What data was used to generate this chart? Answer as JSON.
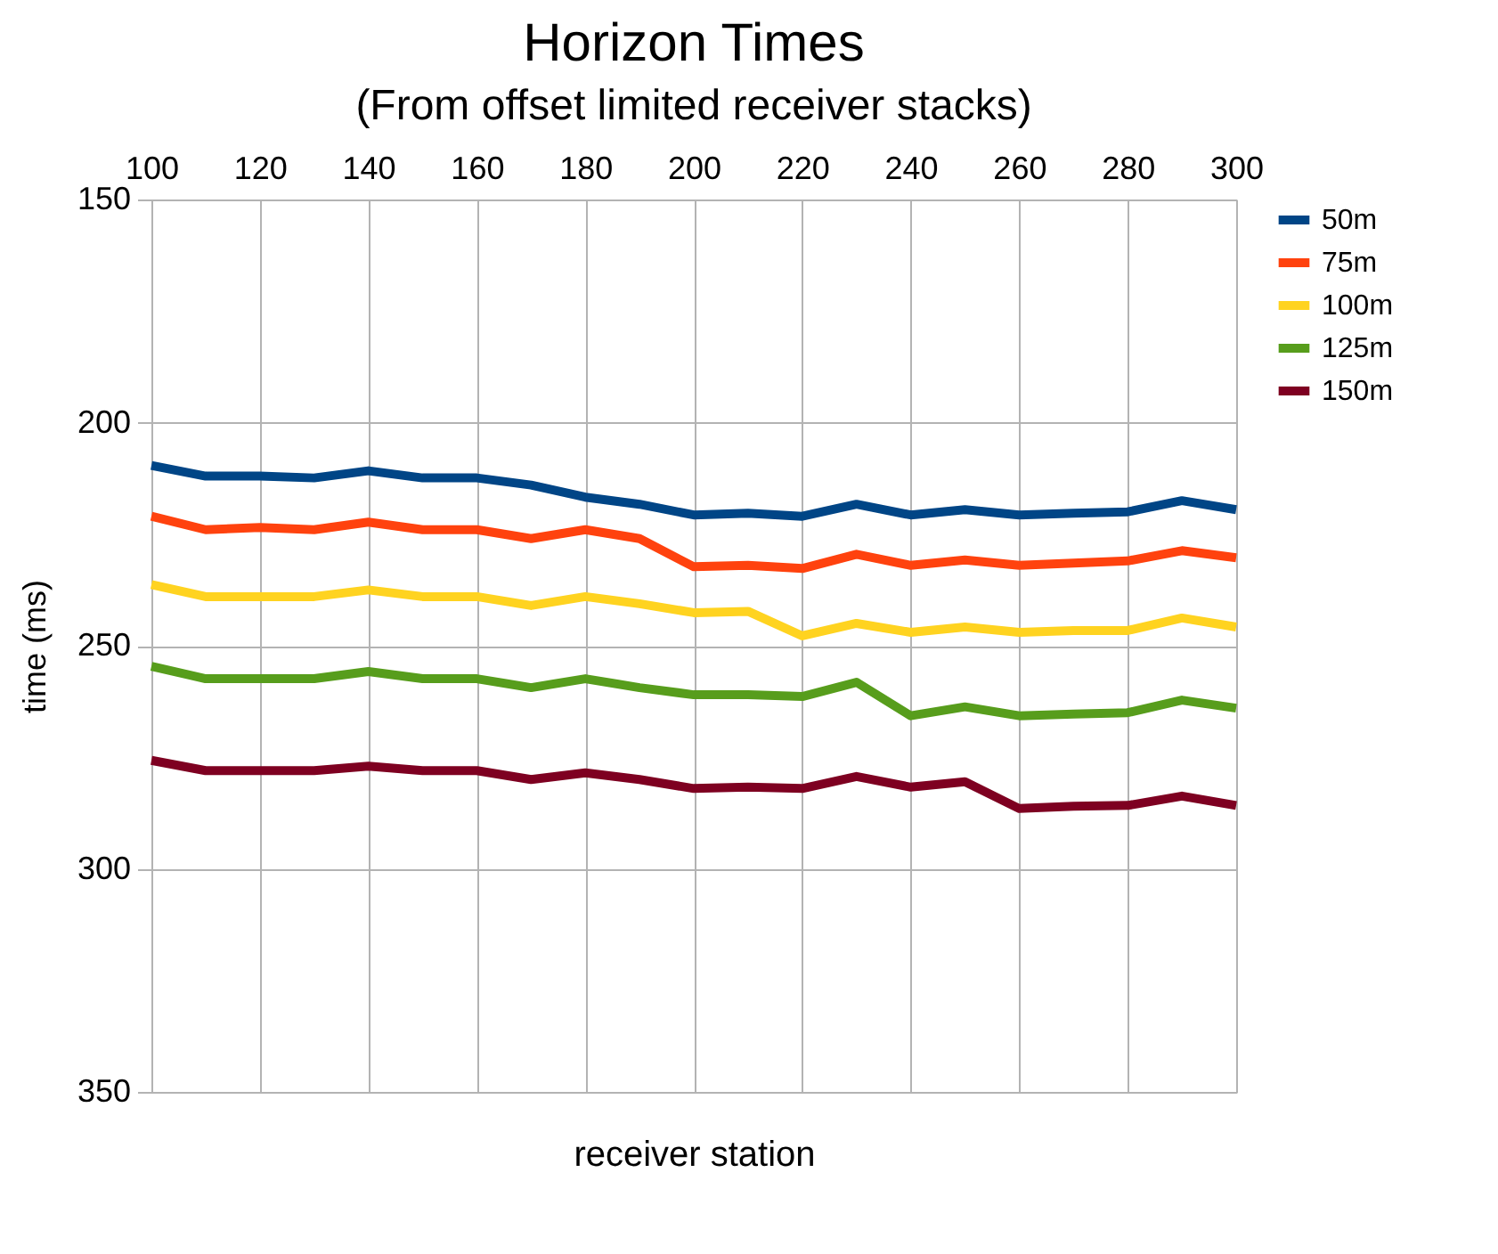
{
  "chart_data": {
    "type": "line",
    "title": "Horizon Times",
    "subtitle": "(From offset limited receiver stacks)",
    "xlabel": "receiver station",
    "ylabel": "time (ms)",
    "x": [
      100,
      110,
      120,
      130,
      140,
      150,
      160,
      170,
      180,
      190,
      200,
      210,
      220,
      230,
      240,
      250,
      260,
      270,
      280,
      290,
      300
    ],
    "series": [
      {
        "name": "50m",
        "color": "#004586",
        "values": [
          209.6,
          212,
          212,
          212.4,
          210.8,
          212.4,
          212.4,
          214,
          216.7,
          218.3,
          220.7,
          220.3,
          221,
          218.3,
          220.7,
          219.5,
          220.7,
          220.3,
          220,
          217.5,
          219.5
        ]
      },
      {
        "name": "75m",
        "color": "#ff420e",
        "values": [
          221,
          224,
          223.5,
          224,
          222.3,
          224,
          224,
          226,
          224,
          226,
          232.3,
          232,
          232.7,
          229.5,
          232,
          230.8,
          232,
          231.5,
          231,
          228.7,
          230.3
        ]
      },
      {
        "name": "100m",
        "color": "#ffd320",
        "values": [
          236.3,
          239,
          239,
          239,
          237.5,
          239,
          239,
          241,
          239,
          240.6,
          242.6,
          242.3,
          247.8,
          245,
          247,
          245.8,
          247,
          246.6,
          246.6,
          243.8,
          245.8
        ]
      },
      {
        "name": "125m",
        "color": "#579d1c",
        "values": [
          254.6,
          257.4,
          257.4,
          257.4,
          255.8,
          257.4,
          257.4,
          259.4,
          257.4,
          259.4,
          261,
          261,
          261.4,
          258.2,
          265.7,
          263.7,
          265.7,
          265.3,
          265,
          262.2,
          264
        ]
      },
      {
        "name": "150m",
        "color": "#7e0021",
        "values": [
          275.7,
          278,
          278,
          278,
          277,
          278,
          278,
          280,
          278.5,
          280,
          282,
          281.7,
          282,
          279.3,
          281.7,
          280.5,
          286.5,
          286,
          285.8,
          283.7,
          285.8
        ]
      }
    ],
    "xlim": [
      100,
      300
    ],
    "xticks": [
      100,
      120,
      140,
      160,
      180,
      200,
      220,
      240,
      260,
      280,
      300
    ],
    "ylim": [
      350,
      150
    ],
    "yticks": [
      150,
      200,
      250,
      300,
      350
    ],
    "grid": true,
    "legend": "right",
    "marker": "none",
    "line_style": "solid"
  }
}
